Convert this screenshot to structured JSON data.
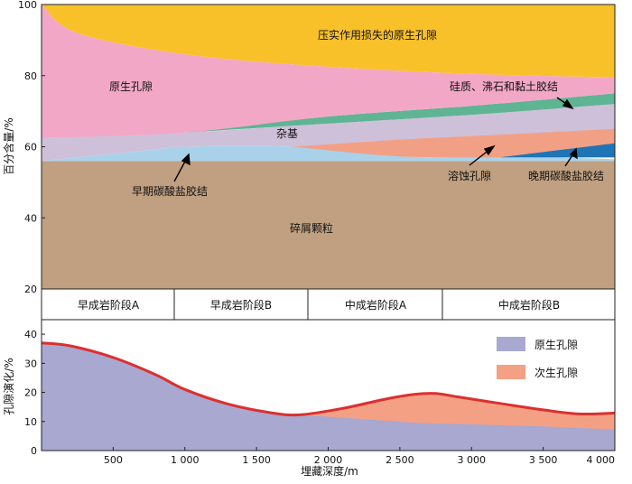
{
  "chart_data": [
    {
      "type": "area",
      "ylabel": "百分含量/%",
      "ylim": [
        20,
        100
      ],
      "yticks": [
        20,
        40,
        60,
        80,
        100
      ],
      "x_range_m": [
        0,
        4000
      ],
      "layers": [
        {
          "name": "碎屑颗粒",
          "color": "#c0a080",
          "lower": [
            [
              0,
              20
            ],
            [
              4000,
              20
            ]
          ],
          "upper": [
            [
              0,
              56
            ],
            [
              4000,
              56
            ]
          ]
        },
        {
          "name": "早期碳酸盐胶结",
          "color": "#a9d2ea",
          "lower": [
            [
              0,
              56
            ],
            [
              4000,
              56
            ]
          ],
          "upper": [
            [
              0,
              56
            ],
            [
              750,
              59
            ],
            [
              1000,
              60
            ],
            [
              1750,
              60
            ],
            [
              2400,
              57.5
            ],
            [
              2800,
              57
            ],
            [
              3500,
              57
            ],
            [
              4000,
              56.5
            ]
          ]
        },
        {
          "name": "杂基",
          "color": "#cfc0da",
          "lower": [
            [
              0,
              56
            ],
            [
              750,
              59
            ],
            [
              1000,
              60
            ],
            [
              1750,
              60
            ],
            [
              2400,
              57.5
            ],
            [
              2800,
              57
            ],
            [
              4000,
              57
            ]
          ],
          "upper": [
            [
              0,
              62.5
            ],
            [
              1000,
              64
            ],
            [
              2000,
              66.5
            ],
            [
              3000,
              69
            ],
            [
              4000,
              72
            ]
          ]
        },
        {
          "name": "溶蚀孔隙",
          "color": "#f2a085",
          "lower": [
            [
              1750,
              60
            ],
            [
              2400,
              57.5
            ],
            [
              2800,
              57
            ],
            [
              3500,
              57
            ],
            [
              4000,
              57
            ]
          ],
          "upper": [
            [
              1750,
              60
            ],
            [
              2500,
              62
            ],
            [
              3000,
              63
            ],
            [
              3500,
              64
            ],
            [
              4000,
              65
            ]
          ]
        },
        {
          "name": "晚期碳酸盐胶结",
          "color": "#1f74b6",
          "lower": [
            [
              3200,
              57
            ],
            [
              4000,
              57
            ]
          ],
          "upper": [
            [
              3200,
              57
            ],
            [
              3600,
              59
            ],
            [
              4000,
              61
            ]
          ]
        },
        {
          "name": "硅质、沸石和黏土胶结",
          "color": "#5fb493",
          "lower": [
            [
              1000,
              64
            ],
            [
              2000,
              66.5
            ],
            [
              3000,
              69
            ],
            [
              4000,
              72
            ]
          ],
          "upper": [
            [
              1000,
              64
            ],
            [
              2000,
              68.5
            ],
            [
              3000,
              71.5
            ],
            [
              4000,
              75
            ]
          ]
        },
        {
          "name": "原生孔隙",
          "color": "#f3a7c6",
          "lower": [
            [
              0,
              62.5
            ],
            [
              1000,
              64
            ],
            [
              2000,
              68.5
            ],
            [
              3000,
              71.5
            ],
            [
              4000,
              75
            ]
          ],
          "upper": [
            [
              0,
              100
            ],
            [
              250,
              92
            ],
            [
              1000,
              86
            ],
            [
              2000,
              82.5
            ],
            [
              3000,
              80.5
            ],
            [
              4000,
              79.5
            ]
          ]
        },
        {
          "name": "压实作用损失的原生孔隙",
          "color": "#f8c12a",
          "lower": [
            [
              0,
              100
            ],
            [
              250,
              92
            ],
            [
              1000,
              86
            ],
            [
              2000,
              82.5
            ],
            [
              3000,
              80.5
            ],
            [
              4000,
              79.5
            ]
          ],
          "upper": [
            [
              0,
              100
            ],
            [
              4000,
              100
            ]
          ]
        }
      ]
    },
    {
      "type": "area",
      "xlabel": "埋藏深度/m",
      "ylabel": "孔隙演化/%",
      "ylim": [
        0,
        45
      ],
      "yticks": [
        0,
        10,
        20,
        30,
        40
      ],
      "xlim": [
        0,
        4000
      ],
      "xticks": [
        500,
        1000,
        1500,
        2000,
        2500,
        3000,
        3500,
        4000
      ],
      "xtick_labels": [
        "500",
        "1 000",
        "1 500",
        "2 000",
        "2 500",
        "3 000",
        "3 500",
        "4 000"
      ],
      "series": [
        {
          "name": "原生孔隙",
          "color": "#a8a8d0",
          "points": [
            [
              0,
              37
            ],
            [
              200,
              36
            ],
            [
              500,
              32
            ],
            [
              800,
              26
            ],
            [
              1000,
              21
            ],
            [
              1300,
              16
            ],
            [
              1600,
              13
            ],
            [
              1800,
              12.3
            ],
            [
              2200,
              11
            ],
            [
              2600,
              9.6
            ],
            [
              3000,
              9
            ],
            [
              3500,
              8.3
            ],
            [
              4000,
              7.2
            ]
          ]
        },
        {
          "name": "次生孔隙",
          "color": "#f4a085",
          "points": [
            [
              0,
              37
            ],
            [
              200,
              36
            ],
            [
              500,
              32
            ],
            [
              800,
              26
            ],
            [
              1000,
              21
            ],
            [
              1300,
              16
            ],
            [
              1600,
              13
            ],
            [
              1800,
              12.3
            ],
            [
              2100,
              14.5
            ],
            [
              2400,
              17.7
            ],
            [
              2600,
              19.3
            ],
            [
              2750,
              19.6
            ],
            [
              2900,
              18.5
            ],
            [
              3200,
              16.2
            ],
            [
              3500,
              14
            ],
            [
              3750,
              12.6
            ],
            [
              4000,
              12.9
            ]
          ]
        }
      ],
      "envelope_color": "#dd2f2f"
    }
  ],
  "stages": [
    "早成岩阶段A",
    "早成岩阶段B",
    "中成岩阶段A",
    "中成岩阶段B"
  ],
  "stage_bounds_m": [
    0,
    920,
    1850,
    2800,
    4000
  ],
  "top_labels": [
    {
      "key": "compaction",
      "text": "压实作用损失的原生孔隙"
    },
    {
      "key": "primary",
      "text": "原生孔隙"
    },
    {
      "key": "silica",
      "text": "硅质、沸石和黏土胶结"
    },
    {
      "key": "matrix",
      "text": "杂基"
    },
    {
      "key": "early",
      "text": "早期碳酸盐胶结"
    },
    {
      "key": "dissolution",
      "text": "溶蚀孔隙"
    },
    {
      "key": "late",
      "text": "晚期碳酸盐胶结"
    },
    {
      "key": "clastic",
      "text": "碎屑颗粒"
    }
  ],
  "legend": [
    {
      "label": "原生孔隙",
      "color": "#a8a8d0"
    },
    {
      "label": "次生孔隙",
      "color": "#f4a085"
    }
  ]
}
